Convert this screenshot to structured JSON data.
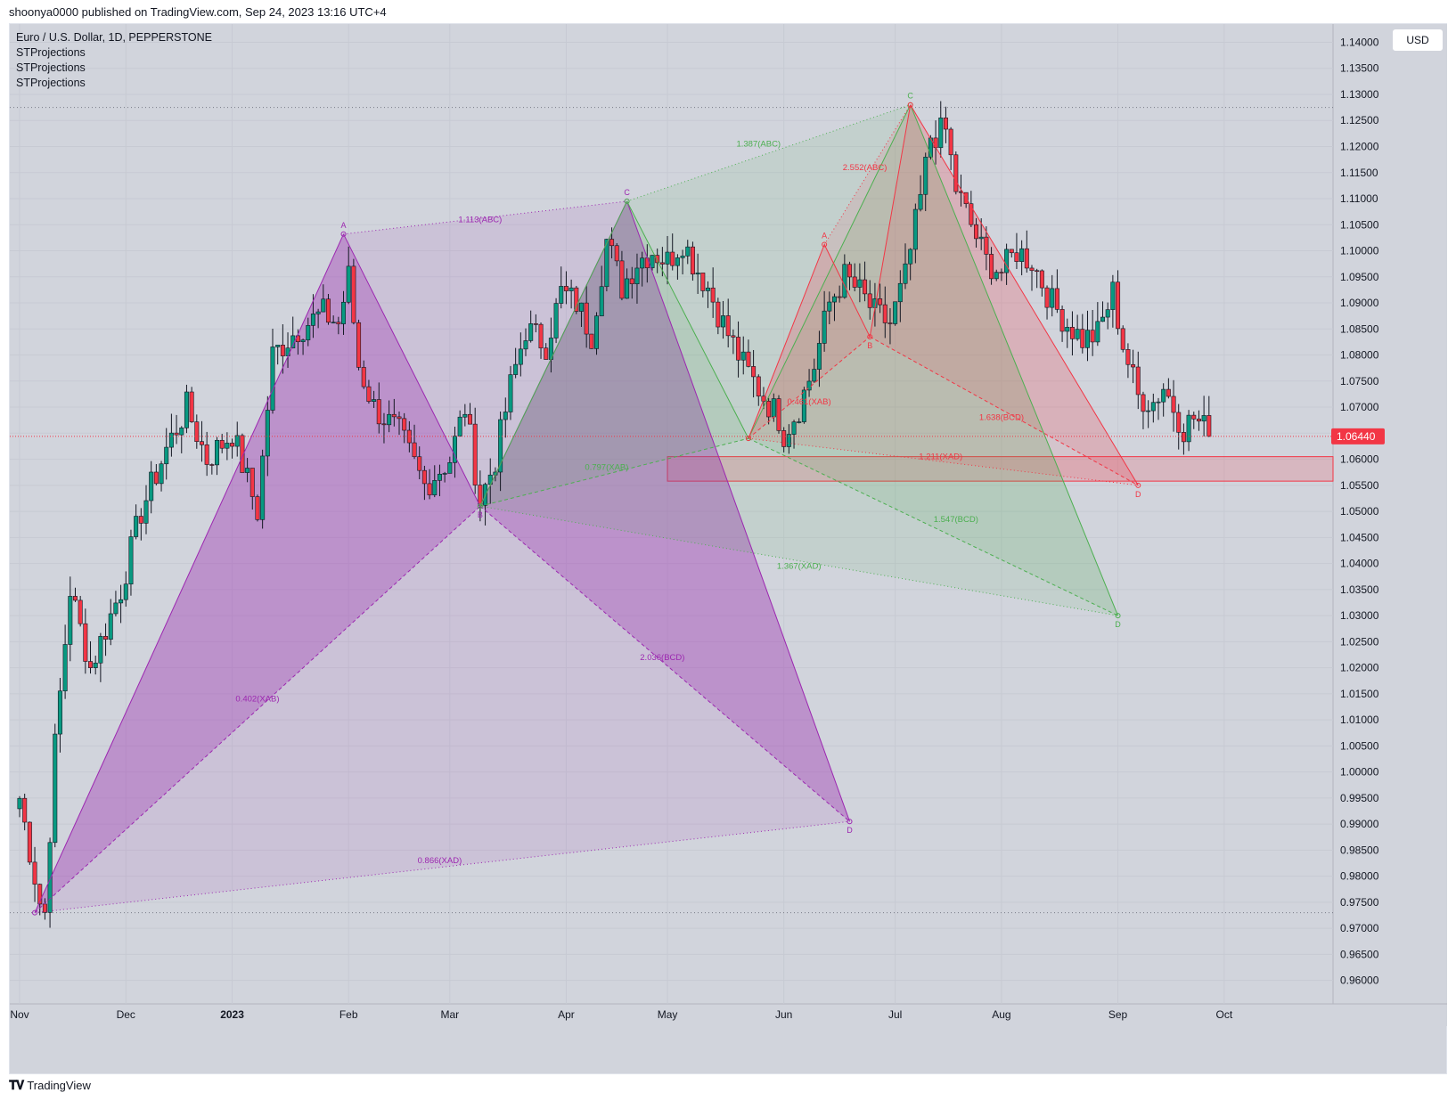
{
  "header": {
    "publisher_line": "shoonya0000 published on TradingView.com, Sep 24, 2023 13:16 UTC+4"
  },
  "legend": {
    "symbol": "Euro / U.S. Dollar, 1D, PEPPERSTONE",
    "indicators": [
      "STProjections",
      "STProjections",
      "STProjections"
    ]
  },
  "currency_button": "USD",
  "footer": {
    "brand": "TradingView",
    "logo_icon": "tradingview-logo-icon"
  },
  "colors": {
    "purple": "#9c27b0",
    "green": "#4caf50",
    "red": "#f23645",
    "bull": "#089981",
    "bear": "#f23645",
    "price_tag": "#f23645"
  },
  "chart_data": {
    "type": "candlestick",
    "instrument": "Euro / U.S. Dollar",
    "timeframe": "1D",
    "exchange": "PEPPERSTONE",
    "y_range": [
      0.9555,
      1.1435
    ],
    "y_ticks": [
      1.14,
      1.135,
      1.13,
      1.125,
      1.12,
      1.115,
      1.11,
      1.105,
      1.1,
      1.095,
      1.09,
      1.085,
      1.08,
      1.075,
      1.07,
      1.065,
      1.06,
      1.055,
      1.05,
      1.045,
      1.04,
      1.035,
      1.03,
      1.025,
      1.02,
      1.015,
      1.01,
      1.005,
      1.0,
      0.995,
      0.99,
      0.985,
      0.98,
      0.975,
      0.97,
      0.965,
      0.96
    ],
    "x_ticks": [
      {
        "label": "Nov",
        "t": 0
      },
      {
        "label": "Dec",
        "t": 21
      },
      {
        "label": "2023",
        "t": 42,
        "bold": true
      },
      {
        "label": "Feb",
        "t": 65
      },
      {
        "label": "Mar",
        "t": 85
      },
      {
        "label": "Apr",
        "t": 108
      },
      {
        "label": "May",
        "t": 128
      },
      {
        "label": "Jun",
        "t": 151
      },
      {
        "label": "Jul",
        "t": 173
      },
      {
        "label": "Aug",
        "t": 194
      },
      {
        "label": "Sep",
        "t": 217
      },
      {
        "label": "Oct",
        "t": 238
      }
    ],
    "last_price": 1.0644,
    "last_price_label": "1.06440",
    "horizontal_levels": [
      1.1275,
      0.973
    ],
    "zone": {
      "t_start": 128,
      "t_end": 260,
      "top": 1.0605,
      "bottom": 1.0558
    },
    "candles_anchor": [
      [
        0,
        0.995
      ],
      [
        4,
        0.975
      ],
      [
        5,
        0.973
      ],
      [
        7,
        1.005
      ],
      [
        10,
        1.035
      ],
      [
        14,
        1.02
      ],
      [
        20,
        1.035
      ],
      [
        24,
        1.05
      ],
      [
        29,
        1.062
      ],
      [
        33,
        1.07
      ],
      [
        37,
        1.06
      ],
      [
        42,
        1.065
      ],
      [
        47,
        1.05
      ],
      [
        50,
        1.08
      ],
      [
        55,
        1.085
      ],
      [
        60,
        1.088
      ],
      [
        63,
        1.086
      ],
      [
        65,
        1.095
      ],
      [
        67,
        1.078
      ],
      [
        70,
        1.07
      ],
      [
        75,
        1.065
      ],
      [
        80,
        1.055
      ],
      [
        85,
        1.06
      ],
      [
        88,
        1.07
      ],
      [
        91,
        1.052
      ],
      [
        94,
        1.06
      ],
      [
        97,
        1.074
      ],
      [
        100,
        1.085
      ],
      [
        104,
        1.082
      ],
      [
        107,
        1.092
      ],
      [
        110,
        1.09
      ],
      [
        113,
        1.084
      ],
      [
        116,
        1.102
      ],
      [
        119,
        1.093
      ],
      [
        122,
        1.098
      ],
      [
        125,
        1.1
      ],
      [
        128,
        1.098
      ],
      [
        131,
        1.102
      ],
      [
        133,
        1.098
      ],
      [
        136,
        1.093
      ],
      [
        139,
        1.086
      ],
      [
        143,
        1.078
      ],
      [
        147,
        1.072
      ],
      [
        150,
        1.068
      ],
      [
        151,
        1.065
      ],
      [
        154,
        1.07
      ],
      [
        157,
        1.078
      ],
      [
        160,
        1.09
      ],
      [
        163,
        1.095
      ],
      [
        166,
        1.092
      ],
      [
        169,
        1.088
      ],
      [
        172,
        1.086
      ],
      [
        175,
        1.095
      ],
      [
        178,
        1.11
      ],
      [
        180,
        1.122
      ],
      [
        183,
        1.123
      ],
      [
        185,
        1.112
      ],
      [
        188,
        1.105
      ],
      [
        191,
        1.098
      ],
      [
        194,
        1.096
      ],
      [
        197,
        1.1
      ],
      [
        200,
        1.098
      ],
      [
        204,
        1.09
      ],
      [
        207,
        1.086
      ],
      [
        210,
        1.083
      ],
      [
        213,
        1.084
      ],
      [
        216,
        1.092
      ],
      [
        218,
        1.082
      ],
      [
        221,
        1.072
      ],
      [
        224,
        1.071
      ],
      [
        226,
        1.074
      ],
      [
        228,
        1.07
      ],
      [
        230,
        1.066
      ],
      [
        232,
        1.068
      ],
      [
        234,
        1.066
      ],
      [
        235,
        1.065
      ]
    ],
    "patterns": [
      {
        "name": "",
        "color": "purple",
        "points": {
          "X": {
            "t": 3,
            "p": 0.973
          },
          "A": {
            "t": 64,
            "p": 1.1032
          },
          "B": {
            "t": 91,
            "p": 1.051
          },
          "C": {
            "t": 120,
            "p": 1.1095
          },
          "D": {
            "t": 164,
            "p": 0.9905
          }
        },
        "labels": [
          "A",
          "B",
          "C",
          "D"
        ],
        "ratios": [
          {
            "text": "0.402(XAB)",
            "t": 47,
            "p": 1.0135
          },
          {
            "text": "1.113(ABC)",
            "t": 91,
            "p": 1.1055
          },
          {
            "text": "2.036(BCD)",
            "t": 127,
            "p": 1.0215
          },
          {
            "text": "0.866(XAD)",
            "t": 83,
            "p": 0.9825
          }
        ]
      },
      {
        "name": "",
        "color": "green",
        "points": {
          "X": {
            "t": 91,
            "p": 1.051
          },
          "A": {
            "t": 120,
            "p": 1.1095
          },
          "B": {
            "t": 144,
            "p": 1.064
          },
          "C": {
            "t": 176,
            "p": 1.128
          },
          "D": {
            "t": 217,
            "p": 1.03
          }
        },
        "labels": [
          "C",
          "D"
        ],
        "ratios": [
          {
            "text": "0.797(XAB)",
            "t": 116,
            "p": 1.058
          },
          {
            "text": "1.387(ABC)",
            "t": 146,
            "p": 1.12
          },
          {
            "text": "1.547(BCD)",
            "t": 185,
            "p": 1.048
          },
          {
            "text": "1.367(XAD)",
            "t": 154,
            "p": 1.039
          }
        ]
      },
      {
        "name": "",
        "color": "red",
        "points": {
          "X": {
            "t": 144,
            "p": 1.064
          },
          "A": {
            "t": 159,
            "p": 1.1012
          },
          "B": {
            "t": 168,
            "p": 1.0835
          },
          "C": {
            "t": 176,
            "p": 1.128
          },
          "D": {
            "t": 221,
            "p": 1.055
          }
        },
        "labels": [
          "A",
          "B",
          "D"
        ],
        "ratios": [
          {
            "text": "0.461(XAB)",
            "t": 156,
            "p": 1.0705
          },
          {
            "text": "2.552(ABC)",
            "t": 167,
            "p": 1.1155
          },
          {
            "text": "1.638(BCD)",
            "t": 194,
            "p": 1.0675
          },
          {
            "text": "1.211(XAD)",
            "t": 182,
            "p": 1.06
          }
        ]
      }
    ]
  }
}
